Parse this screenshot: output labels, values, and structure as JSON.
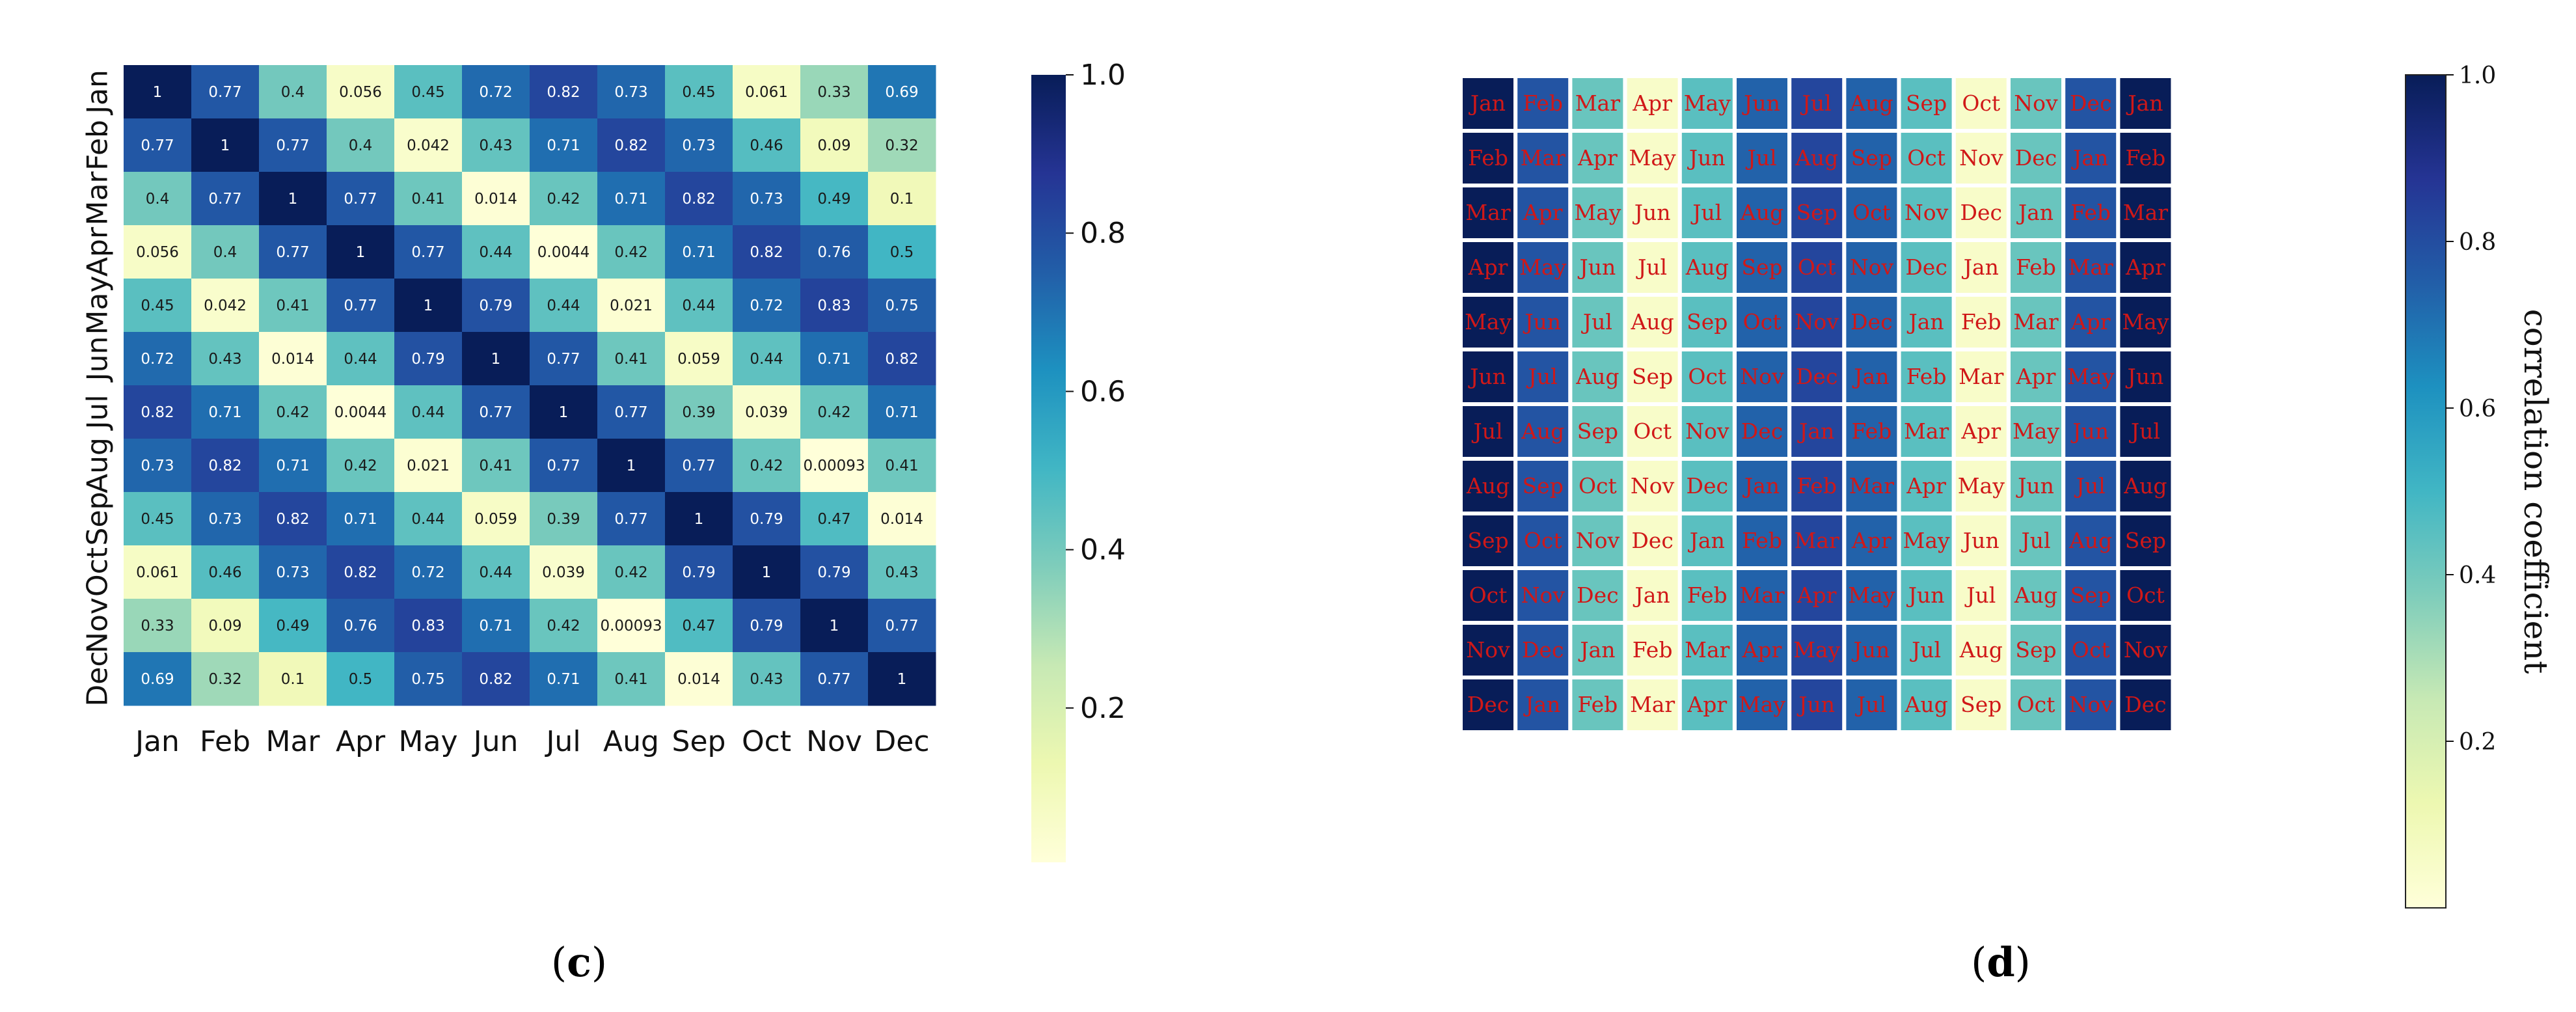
{
  "chart_data": [
    {
      "type": "heatmap",
      "panel_label": "(c)",
      "panel_letter": "c",
      "x_labels": [
        "Jan",
        "Feb",
        "Mar",
        "Apr",
        "May",
        "Jun",
        "Jul",
        "Aug",
        "Sep",
        "Oct",
        "Nov",
        "Dec"
      ],
      "y_labels": [
        "Jan",
        "Feb",
        "Mar",
        "Apr",
        "May",
        "Jun",
        "Jul",
        "Aug",
        "Sep",
        "Oct",
        "Nov",
        "Dec"
      ],
      "values": [
        [
          1,
          0.77,
          0.4,
          0.056,
          0.45,
          0.72,
          0.82,
          0.73,
          0.45,
          0.061,
          0.33,
          0.69
        ],
        [
          0.77,
          1,
          0.77,
          0.4,
          0.042,
          0.43,
          0.71,
          0.82,
          0.73,
          0.46,
          0.09,
          0.32
        ],
        [
          0.4,
          0.77,
          1,
          0.77,
          0.41,
          0.014,
          0.42,
          0.71,
          0.82,
          0.73,
          0.49,
          0.1
        ],
        [
          0.056,
          0.4,
          0.77,
          1,
          0.77,
          0.44,
          0.0044,
          0.42,
          0.71,
          0.82,
          0.76,
          0.5
        ],
        [
          0.45,
          0.042,
          0.41,
          0.77,
          1,
          0.79,
          0.44,
          0.021,
          0.44,
          0.72,
          0.83,
          0.75
        ],
        [
          0.72,
          0.43,
          0.014,
          0.44,
          0.79,
          1,
          0.77,
          0.41,
          0.059,
          0.44,
          0.71,
          0.82
        ],
        [
          0.82,
          0.71,
          0.42,
          0.0044,
          0.44,
          0.77,
          1,
          0.77,
          0.39,
          0.039,
          0.42,
          0.71
        ],
        [
          0.73,
          0.82,
          0.71,
          0.42,
          0.021,
          0.41,
          0.77,
          1,
          0.77,
          0.42,
          0.00093,
          0.41
        ],
        [
          0.45,
          0.73,
          0.82,
          0.71,
          0.44,
          0.059,
          0.39,
          0.77,
          1,
          0.79,
          0.47,
          0.014
        ],
        [
          0.061,
          0.46,
          0.73,
          0.82,
          0.72,
          0.44,
          0.039,
          0.42,
          0.79,
          1,
          0.79,
          0.43
        ],
        [
          0.33,
          0.09,
          0.49,
          0.76,
          0.83,
          0.71,
          0.42,
          0.00093,
          0.47,
          0.79,
          1,
          0.77
        ],
        [
          0.69,
          0.32,
          0.1,
          0.5,
          0.75,
          0.82,
          0.71,
          0.41,
          0.014,
          0.43,
          0.77,
          1
        ]
      ],
      "colorbar": {
        "ticks": [
          "1.0",
          "0.8",
          "0.6",
          "0.4",
          "0.2"
        ],
        "tick_values": [
          1.0,
          0.8,
          0.6,
          0.4,
          0.2
        ],
        "range": [
          0,
          1
        ],
        "label": ""
      },
      "colormap": "YlGnBu"
    },
    {
      "type": "heatmap",
      "panel_label": "(d)",
      "panel_letter": "d",
      "cell_labels": [
        [
          "Jan",
          "Feb",
          "Mar",
          "Apr",
          "May",
          "Jun",
          "Jul",
          "Aug",
          "Sep",
          "Oct",
          "Nov",
          "Dec",
          "Jan"
        ],
        [
          "Feb",
          "Mar",
          "Apr",
          "May",
          "Jun",
          "Jul",
          "Aug",
          "Sep",
          "Oct",
          "Nov",
          "Dec",
          "Jan",
          "Feb"
        ],
        [
          "Mar",
          "Apr",
          "May",
          "Jun",
          "Jul",
          "Aug",
          "Sep",
          "Oct",
          "Nov",
          "Dec",
          "Jan",
          "Feb",
          "Mar"
        ],
        [
          "Apr",
          "May",
          "Jun",
          "Jul",
          "Aug",
          "Sep",
          "Oct",
          "Nov",
          "Dec",
          "Jan",
          "Feb",
          "Mar",
          "Apr"
        ],
        [
          "May",
          "Jun",
          "Jul",
          "Aug",
          "Sep",
          "Oct",
          "Nov",
          "Dec",
          "Jan",
          "Feb",
          "Mar",
          "Apr",
          "May"
        ],
        [
          "Jun",
          "Jul",
          "Aug",
          "Sep",
          "Oct",
          "Nov",
          "Dec",
          "Jan",
          "Feb",
          "Mar",
          "Apr",
          "May",
          "Jun"
        ],
        [
          "Jul",
          "Aug",
          "Sep",
          "Oct",
          "Nov",
          "Dec",
          "Jan",
          "Feb",
          "Mar",
          "Apr",
          "May",
          "Jun",
          "Jul"
        ],
        [
          "Aug",
          "Sep",
          "Oct",
          "Nov",
          "Dec",
          "Jan",
          "Feb",
          "Mar",
          "Apr",
          "May",
          "Jun",
          "Jul",
          "Aug"
        ],
        [
          "Sep",
          "Oct",
          "Nov",
          "Dec",
          "Jan",
          "Feb",
          "Mar",
          "Apr",
          "May",
          "Jun",
          "Jul",
          "Aug",
          "Sep"
        ],
        [
          "Oct",
          "Nov",
          "Dec",
          "Jan",
          "Feb",
          "Mar",
          "Apr",
          "May",
          "Jun",
          "Jul",
          "Aug",
          "Sep",
          "Oct"
        ],
        [
          "Nov",
          "Dec",
          "Jan",
          "Feb",
          "Mar",
          "Apr",
          "May",
          "Jun",
          "Jul",
          "Aug",
          "Sep",
          "Oct",
          "Nov"
        ],
        [
          "Dec",
          "Jan",
          "Feb",
          "Mar",
          "Apr",
          "May",
          "Jun",
          "Jul",
          "Aug",
          "Sep",
          "Oct",
          "Nov",
          "Dec"
        ]
      ],
      "lag_values": [
        1.0,
        0.78,
        0.42,
        0.05,
        0.45,
        0.74,
        0.82,
        0.74,
        0.45,
        0.05,
        0.42,
        0.78,
        1.0
      ],
      "colorbar": {
        "ticks": [
          "1.0",
          "0.8",
          "0.6",
          "0.4",
          "0.2"
        ],
        "tick_values": [
          1.0,
          0.8,
          0.6,
          0.4,
          0.2
        ],
        "range": [
          0,
          1
        ],
        "label": "correlation coefficient"
      },
      "label_color": "#d01818",
      "colormap": "YlGnBu"
    }
  ]
}
